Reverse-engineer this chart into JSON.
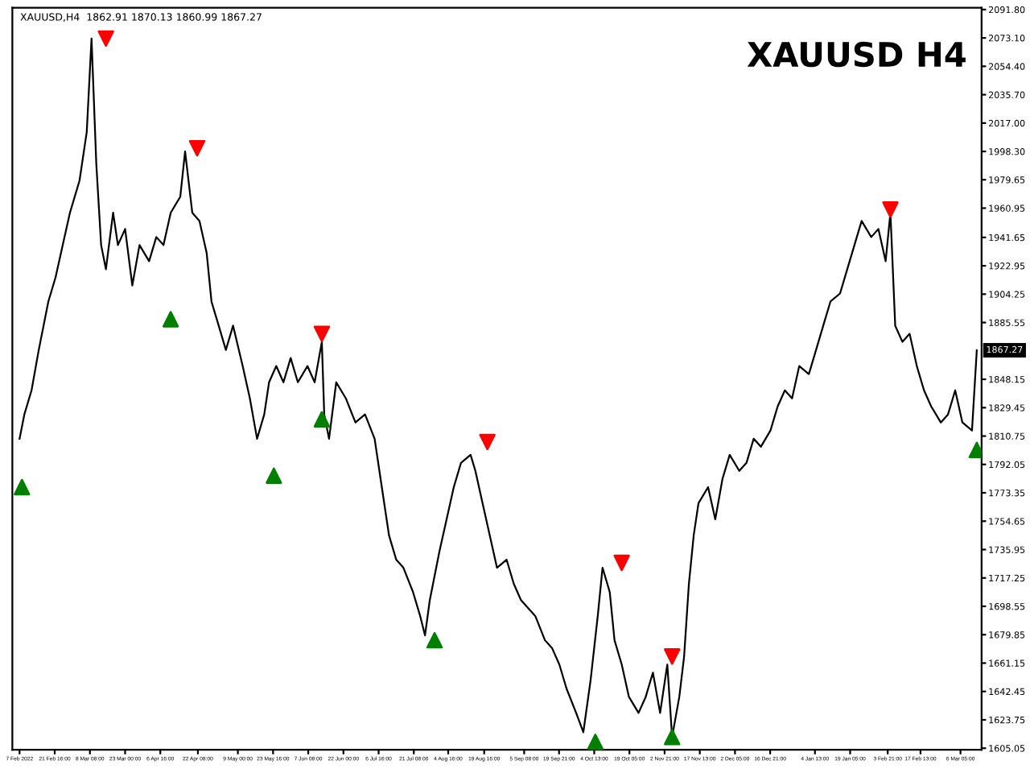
{
  "chart_data": {
    "type": "line",
    "title": "XAUUSD H4",
    "annotations": [
      "XAUUSD,H4  1862.91 1870.13 1860.99 1867.27",
      {
        "text": "1867.27",
        "y": 1867.27
      }
    ],
    "xlim": [
      "2022-02-04",
      "2023-03-15"
    ],
    "xticks": [
      {
        "value": "2022-02-07",
        "label": "7 Feb 2022"
      },
      {
        "value": "2022-02-21T16:00",
        "label": "21 Feb 16:00"
      },
      {
        "value": "2022-03-08T08:00",
        "label": "8 Mar 08:00"
      },
      {
        "value": "2022-03-23T00:00",
        "label": "23 Mar 00:00"
      },
      {
        "value": "2022-04-06T16:00",
        "label": "6 Apr 16:00"
      },
      {
        "value": "2022-04-22T08:00",
        "label": "22 Apr 08:00"
      },
      {
        "value": "2022-05-09T00:00",
        "label": "9 May 00:00"
      },
      {
        "value": "2022-05-23T16:00",
        "label": "23 May 16:00"
      },
      {
        "value": "2022-06-07T08:00",
        "label": "7 Jun 08:00"
      },
      {
        "value": "2022-06-22T00:00",
        "label": "22 Jun 00:00"
      },
      {
        "value": "2022-07-06T16:00",
        "label": "6 Jul 16:00"
      },
      {
        "value": "2022-07-21T08:00",
        "label": "21 Jul 08:00"
      },
      {
        "value": "2022-08-04T16:00",
        "label": "4 Aug 16:00"
      },
      {
        "value": "2022-08-19T16:00",
        "label": "19 Aug 16:00"
      },
      {
        "value": "2022-09-05T08:00",
        "label": "5 Sep 08:00"
      },
      {
        "value": "2022-09-19T21:00",
        "label": "19 Sep 21:00"
      },
      {
        "value": "2022-10-04T13:00",
        "label": "4 Oct 13:00"
      },
      {
        "value": "2022-10-19T05:00",
        "label": "19 Oct 05:00"
      },
      {
        "value": "2022-11-02T21:00",
        "label": "2 Nov 21:00"
      },
      {
        "value": "2022-11-17T13:00",
        "label": "17 Nov 13:00"
      },
      {
        "value": "2022-12-02T05:00",
        "label": "2 Dec 05:00"
      },
      {
        "value": "2022-12-16T21:00",
        "label": "16 Dec 21:00"
      },
      {
        "value": "2023-01-04T13:00",
        "label": "4 Jan 13:00"
      },
      {
        "value": "2023-01-19T05:00",
        "label": "19 Jan 05:00"
      },
      {
        "value": "2023-02-03T21:00",
        "label": "3 Feb 21:00"
      },
      {
        "value": "2023-02-17T13:00",
        "label": "17 Feb 13:00"
      },
      {
        "value": "2023-03-06T05:00",
        "label": "6 Mar 05:00"
      }
    ],
    "ylim": [
      1604,
      2093
    ],
    "yticks": [
      1605.05,
      1623.75,
      1642.45,
      1661.15,
      1679.85,
      1698.55,
      1717.25,
      1735.95,
      1754.65,
      1773.35,
      1792.05,
      1810.75,
      1829.45,
      1848.15,
      1885.55,
      1904.25,
      1922.95,
      1941.65,
      1960.95,
      1979.65,
      {
        "value": 1998.3,
        "label": "1998.30"
      },
      {
        "value": 2017,
        "label": "2017.00"
      },
      {
        "value": 2035.7,
        "label": "2035.70"
      },
      {
        "value": 2054.4,
        "label": "2054.40"
      },
      {
        "value": 2073.1,
        "label": "2073.10"
      },
      {
        "value": 2091.8,
        "label": "2091.80"
      }
    ],
    "series": [
      {
        "color": "#000000",
        "marker": "none",
        "line_style": "solid",
        "x": [
          "2022-02-07",
          "2022-02-09",
          "2022-02-12",
          "2022-02-15",
          "2022-02-19",
          "2022-02-22",
          "2022-02-25",
          "2022-02-28",
          "2022-03-04",
          "2022-03-07",
          "2022-03-09",
          "2022-03-11",
          "2022-03-13",
          "2022-03-15",
          "2022-03-18",
          "2022-03-20",
          "2022-03-23",
          "2022-03-26",
          "2022-03-29",
          "2022-04-02",
          "2022-04-05",
          "2022-04-08",
          "2022-04-11",
          "2022-04-15",
          "2022-04-17",
          "2022-04-20",
          "2022-04-23",
          "2022-04-26",
          "2022-04-28",
          "2022-05-01",
          "2022-05-04",
          "2022-05-07",
          "2022-05-11",
          "2022-05-14",
          "2022-05-17",
          "2022-05-20",
          "2022-05-22",
          "2022-05-25",
          "2022-05-28",
          "2022-05-31",
          "2022-06-03",
          "2022-06-07",
          "2022-06-10",
          "2022-06-13",
          "2022-06-14",
          "2022-06-16",
          "2022-06-19",
          "2022-06-23",
          "2022-06-27",
          "2022-07-01",
          "2022-07-05",
          "2022-07-08",
          "2022-07-11",
          "2022-07-14",
          "2022-07-17",
          "2022-07-21",
          "2022-07-24",
          "2022-07-26",
          "2022-07-28",
          "2022-08-01",
          "2022-08-04",
          "2022-08-07",
          "2022-08-10",
          "2022-08-14",
          "2022-08-16",
          "2022-08-19",
          "2022-08-22",
          "2022-08-25",
          "2022-08-29",
          "2022-09-01",
          "2022-09-04",
          "2022-09-07",
          "2022-09-10",
          "2022-09-14",
          "2022-09-17",
          "2022-09-20",
          "2022-09-23",
          "2022-09-27",
          "2022-09-30",
          "2022-10-03",
          "2022-10-06",
          "2022-10-08",
          "2022-10-11",
          "2022-10-13",
          "2022-10-16",
          "2022-10-19",
          "2022-10-23",
          "2022-10-26",
          "2022-10-29",
          "2022-11-01",
          "2022-11-04",
          "2022-11-06",
          "2022-11-09",
          "2022-11-11",
          "2022-11-13",
          "2022-11-15",
          "2022-11-17",
          "2022-11-21",
          "2022-11-24",
          "2022-11-27",
          "2022-11-30",
          "2022-12-04",
          "2022-12-07",
          "2022-12-10",
          "2022-12-13",
          "2022-12-17",
          "2022-12-20",
          "2022-12-23",
          "2022-12-26",
          "2022-12-29",
          "2023-01-02",
          "2023-01-05",
          "2023-01-08",
          "2023-01-11",
          "2023-01-15",
          "2023-01-18",
          "2023-01-21",
          "2023-01-24",
          "2023-01-28",
          "2023-01-31",
          "2023-02-03",
          "2023-02-05",
          "2023-02-07",
          "2023-02-10",
          "2023-02-13",
          "2023-02-16",
          "2023-02-19",
          "2023-02-22",
          "2023-02-26",
          "2023-03-01",
          "2023-03-04",
          "2023-03-07",
          "2023-03-11",
          "2023-03-13"
        ],
        "values": [
          1809.0,
          1825.0,
          1840.9,
          1867.5,
          1899.4,
          1915.3,
          1936.6,
          1957.9,
          1979.1,
          2011.0,
          2072.7,
          1989.7,
          1936.6,
          1920.7,
          1957.9,
          1936.6,
          1947.2,
          1910.0,
          1936.6,
          1926.0,
          1941.9,
          1936.6,
          1957.9,
          1968.5,
          1998.3,
          1957.9,
          1952.5,
          1931.3,
          1899.4,
          1883.5,
          1867.5,
          1883.5,
          1856.9,
          1835.6,
          1809.0,
          1825.0,
          1846.2,
          1856.9,
          1846.2,
          1862.2,
          1846.2,
          1856.9,
          1846.2,
          1872.8,
          1825.0,
          1809.0,
          1846.2,
          1835.6,
          1819.7,
          1825.0,
          1809.0,
          1777.1,
          1745.3,
          1729.3,
          1724.0,
          1708.0,
          1692.1,
          1679.4,
          1702.7,
          1734.6,
          1755.9,
          1777.1,
          1793.1,
          1798.4,
          1787.8,
          1766.5,
          1745.3,
          1724.0,
          1729.3,
          1713.4,
          1702.7,
          1697.4,
          1692.1,
          1676.2,
          1670.9,
          1660.2,
          1644.3,
          1628.3,
          1615.6,
          1649.6,
          1692.1,
          1724.0,
          1708.0,
          1676.2,
          1660.2,
          1638.9,
          1628.3,
          1638.9,
          1654.9,
          1628.3,
          1660.2,
          1612.4,
          1638.9,
          1665.5,
          1713.4,
          1745.3,
          1766.5,
          1777.1,
          1755.9,
          1782.5,
          1798.4,
          1787.8,
          1793.1,
          1809.0,
          1803.7,
          1814.4,
          1830.3,
          1840.9,
          1835.6,
          1856.9,
          1851.6,
          1867.5,
          1883.5,
          1899.4,
          1904.7,
          1920.7,
          1936.6,
          1952.5,
          1941.9,
          1947.2,
          1926.0,
          1957.9,
          1883.5,
          1872.8,
          1878.1,
          1856.9,
          1840.9,
          1830.3,
          1819.7,
          1825.0,
          1840.9,
          1819.7,
          1814.4,
          1867.27
        ]
      },
      {
        "type": "scatter",
        "color": "#ff0000",
        "marker": "triangle_down",
        "x": [
          "2022-03-15",
          "2022-04-22",
          "2022-06-13",
          "2022-08-21",
          "2022-10-16",
          "2022-11-06",
          "2023-02-05"
        ],
        "values": [
          2072.7,
          2000.4,
          1878.1,
          1806.9,
          1727.2,
          1665.5,
          1960.0
        ]
      },
      {
        "type": "scatter",
        "color": "#007f00",
        "marker": "triangle",
        "x": [
          "2022-02-08",
          "2022-04-11",
          "2022-05-24",
          "2022-06-13",
          "2022-07-30",
          "2022-10-05",
          "2022-11-06",
          "2023-03-13"
        ],
        "values": [
          1777.1,
          1887.7,
          1784.6,
          1821.8,
          1676.2,
          1609.2,
          1612.4,
          1801.6
        ]
      }
    ]
  }
}
